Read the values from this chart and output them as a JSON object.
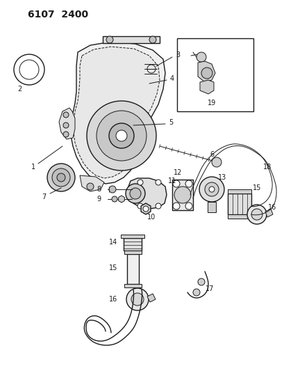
{
  "title": "6107  2400",
  "bg_color": "#ffffff",
  "line_color": "#1a1a1a",
  "gray": "#888888",
  "lightgray": "#cccccc",
  "title_fontsize": 10,
  "fig_width": 4.1,
  "fig_height": 5.33,
  "dpi": 100
}
